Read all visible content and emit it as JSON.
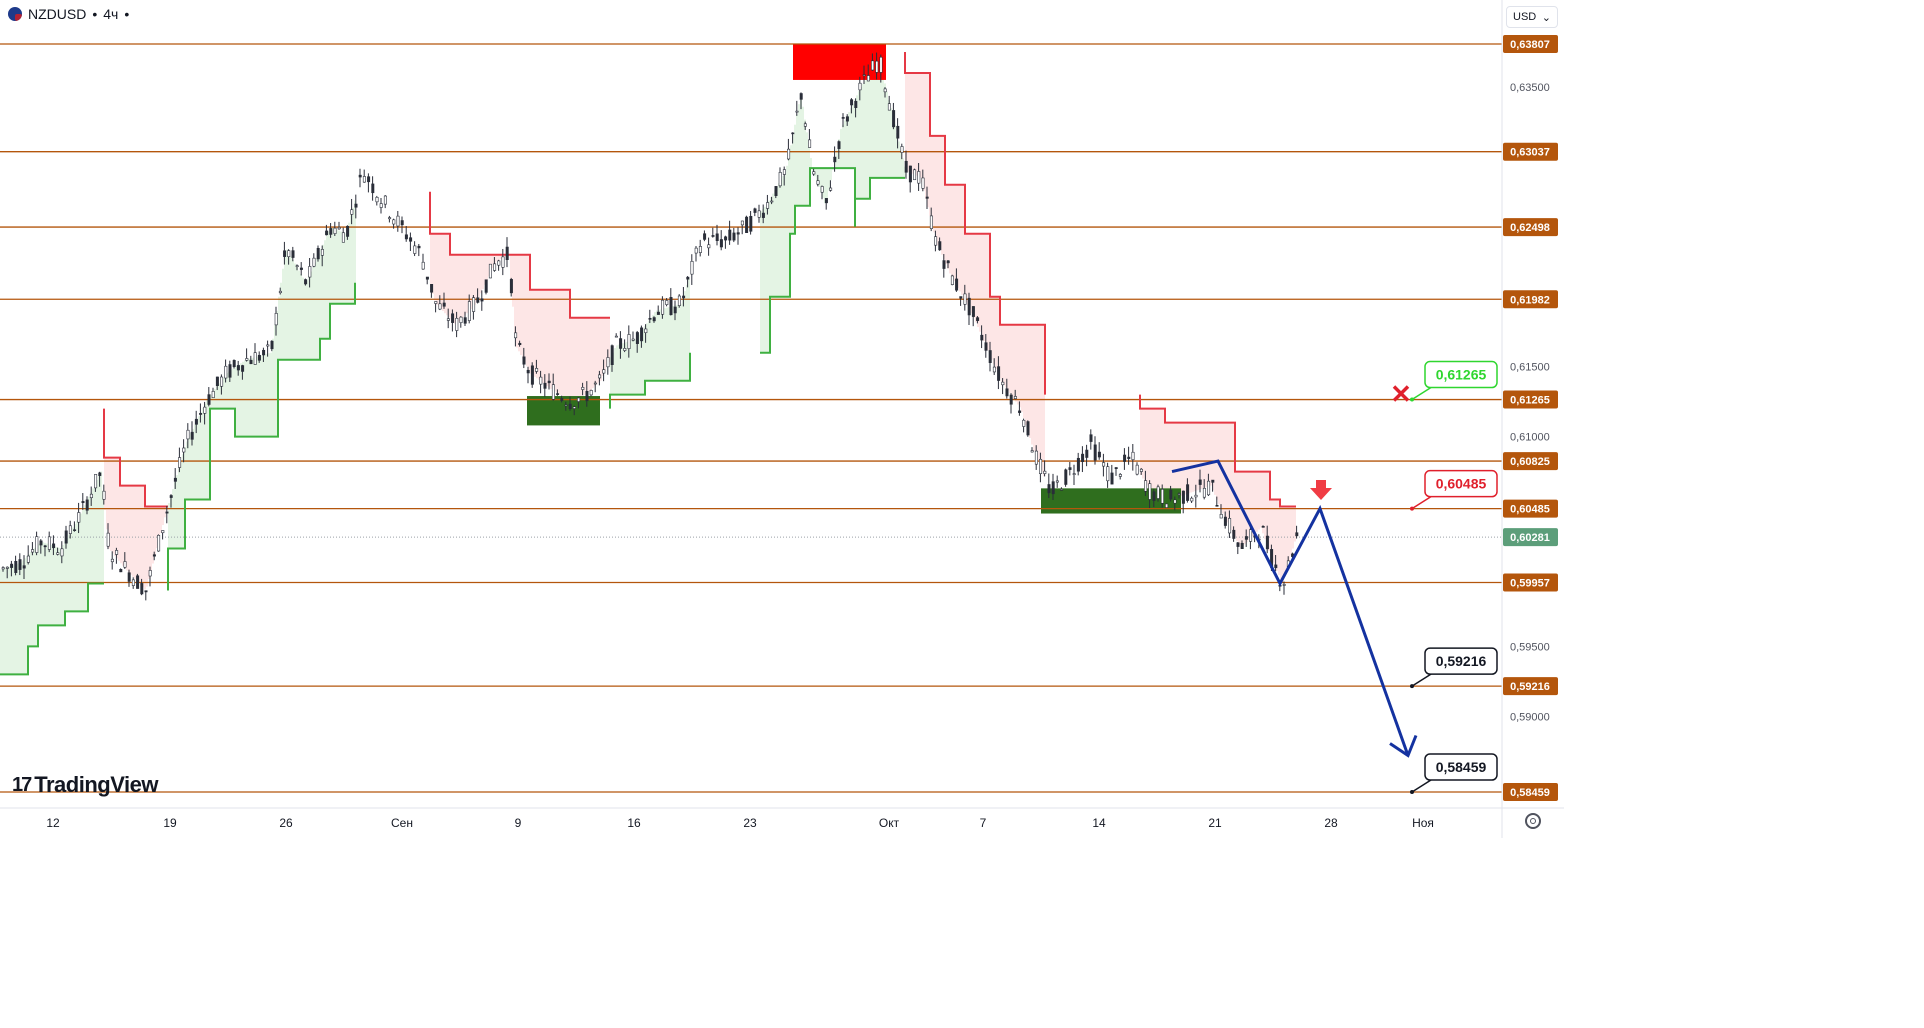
{
  "header": {
    "symbol": "NZDUSD",
    "interval": "4ч",
    "separator": "•",
    "flag_icon": "nz-us-flag-icon"
  },
  "currency_select": {
    "value": "USD",
    "icon": "chevron-down-icon"
  },
  "logo": {
    "mark": "17",
    "text": "TradingView"
  },
  "colors": {
    "level_line": "#b4560c",
    "level_badge": "#b4560c",
    "current_badge": "#5c9e7a",
    "bull_candle": "#2a2e39",
    "stop_up": "#e53945",
    "stop_down": "#3fb041",
    "fill_up": "#fde6e6",
    "fill_down": "#e4f4e4",
    "supply_zone": "#ff0000",
    "demand_zone": "#2f6e1e",
    "forecast": "#1432a0",
    "callout_green": "#2fd62f",
    "callout_red": "#e0202c"
  },
  "chart_data": {
    "type": "candlestick",
    "symbol": "NZDUSD",
    "timeframe": "4ч",
    "y_axis_ticks": [
      0.635,
      0.615,
      0.61,
      0.595,
      0.59
    ],
    "ylim": [
      0.5835,
      0.6405
    ],
    "x_axis_ticks": [
      "12",
      "19",
      "26",
      "Сен",
      "9",
      "16",
      "23",
      "Окт",
      "7",
      "14",
      "21",
      "28",
      "Ноя"
    ],
    "levels": [
      "0,63807",
      "0,63037",
      "0,62498",
      "0,61982",
      "0,61265",
      "0,60825",
      "0,60485",
      "0,59957",
      "0,59216",
      "0,58459"
    ],
    "level_values": [
      0.63807,
      0.63037,
      0.62498,
      0.61982,
      0.61265,
      0.60825,
      0.60485,
      0.59957,
      0.59216,
      0.58459
    ],
    "current_price": {
      "label": "0,60281",
      "value": 0.60281
    },
    "price_path": [
      [
        0,
        0.6005
      ],
      [
        20,
        0.601
      ],
      [
        40,
        0.6025
      ],
      [
        60,
        0.602
      ],
      [
        80,
        0.6045
      ],
      [
        100,
        0.6075
      ],
      [
        108,
        0.602
      ],
      [
        125,
        0.6005
      ],
      [
        145,
        0.599
      ],
      [
        165,
        0.6045
      ],
      [
        185,
        0.6095
      ],
      [
        205,
        0.6125
      ],
      [
        225,
        0.6145
      ],
      [
        245,
        0.6155
      ],
      [
        270,
        0.616
      ],
      [
        285,
        0.6235
      ],
      [
        305,
        0.621
      ],
      [
        330,
        0.625
      ],
      [
        345,
        0.6245
      ],
      [
        362,
        0.629
      ],
      [
        380,
        0.627
      ],
      [
        400,
        0.625
      ],
      [
        420,
        0.623
      ],
      [
        435,
        0.6195
      ],
      [
        455,
        0.618
      ],
      [
        475,
        0.6195
      ],
      [
        495,
        0.6225
      ],
      [
        508,
        0.623
      ],
      [
        515,
        0.6165
      ],
      [
        530,
        0.6145
      ],
      [
        548,
        0.6135
      ],
      [
        570,
        0.6125
      ],
      [
        585,
        0.613
      ],
      [
        600,
        0.614
      ],
      [
        615,
        0.6165
      ],
      [
        635,
        0.617
      ],
      [
        655,
        0.619
      ],
      [
        680,
        0.6195
      ],
      [
        700,
        0.624
      ],
      [
        725,
        0.624
      ],
      [
        745,
        0.625
      ],
      [
        765,
        0.6265
      ],
      [
        785,
        0.629
      ],
      [
        800,
        0.6345
      ],
      [
        812,
        0.629
      ],
      [
        825,
        0.6265
      ],
      [
        840,
        0.632
      ],
      [
        860,
        0.635
      ],
      [
        878,
        0.637
      ],
      [
        890,
        0.6335
      ],
      [
        905,
        0.629
      ],
      [
        920,
        0.6285
      ],
      [
        935,
        0.624
      ],
      [
        950,
        0.6215
      ],
      [
        970,
        0.619
      ],
      [
        985,
        0.6165
      ],
      [
        1000,
        0.614
      ],
      [
        1020,
        0.612
      ],
      [
        1035,
        0.6085
      ],
      [
        1050,
        0.606
      ],
      [
        1070,
        0.6075
      ],
      [
        1090,
        0.6095
      ],
      [
        1110,
        0.607
      ],
      [
        1130,
        0.6085
      ],
      [
        1150,
        0.606
      ],
      [
        1170,
        0.6055
      ],
      [
        1190,
        0.606
      ],
      [
        1210,
        0.6065
      ],
      [
        1225,
        0.604
      ],
      [
        1240,
        0.602
      ],
      [
        1260,
        0.6035
      ],
      [
        1272,
        0.601
      ],
      [
        1282,
        0.5995
      ],
      [
        1296,
        0.603
      ]
    ],
    "stop_up_steps": [
      [
        104,
        0.612
      ],
      [
        104,
        0.6085
      ],
      [
        120,
        0.6085
      ],
      [
        120,
        0.6065
      ],
      [
        145,
        0.6065
      ],
      [
        145,
        0.605
      ],
      [
        168,
        0.605
      ],
      [
        430,
        0.6275
      ],
      [
        430,
        0.6245
      ],
      [
        450,
        0.6245
      ],
      [
        450,
        0.623
      ],
      [
        510,
        0.623
      ],
      [
        530,
        0.623
      ],
      [
        530,
        0.6205
      ],
      [
        570,
        0.6205
      ],
      [
        570,
        0.6185
      ],
      [
        610,
        0.6185
      ],
      [
        905,
        0.6375
      ],
      [
        905,
        0.636
      ],
      [
        930,
        0.633
      ],
      [
        930,
        0.6315
      ],
      [
        945,
        0.63
      ],
      [
        945,
        0.628
      ],
      [
        965,
        0.627
      ],
      [
        965,
        0.6245
      ],
      [
        990,
        0.622
      ],
      [
        990,
        0.62
      ],
      [
        1000,
        0.6195
      ],
      [
        1000,
        0.618
      ],
      [
        1030,
        0.618
      ],
      [
        1045,
        0.614
      ],
      [
        1045,
        0.613
      ],
      [
        1140,
        0.613
      ],
      [
        1140,
        0.612
      ],
      [
        1165,
        0.611
      ],
      [
        1225,
        0.611
      ],
      [
        1235,
        0.6085
      ],
      [
        1235,
        0.6075
      ],
      [
        1270,
        0.6075
      ],
      [
        1270,
        0.6055
      ],
      [
        1280,
        0.6055
      ],
      [
        1280,
        0.605
      ],
      [
        1296,
        0.605
      ]
    ],
    "stop_down_steps": [
      [
        0,
        0.593
      ],
      [
        28,
        0.593
      ],
      [
        28,
        0.595
      ],
      [
        38,
        0.595
      ],
      [
        38,
        0.5965
      ],
      [
        65,
        0.5965
      ],
      [
        65,
        0.5975
      ],
      [
        88,
        0.5975
      ],
      [
        88,
        0.5995
      ],
      [
        104,
        0.5995
      ],
      [
        168,
        0.599
      ],
      [
        168,
        0.602
      ],
      [
        185,
        0.602
      ],
      [
        185,
        0.6055
      ],
      [
        210,
        0.6095
      ],
      [
        210,
        0.612
      ],
      [
        235,
        0.611
      ],
      [
        235,
        0.61
      ],
      [
        278,
        0.61
      ],
      [
        278,
        0.6155
      ],
      [
        300,
        0.6155
      ],
      [
        320,
        0.616
      ],
      [
        320,
        0.617
      ],
      [
        330,
        0.618
      ],
      [
        330,
        0.6195
      ],
      [
        355,
        0.6195
      ],
      [
        355,
        0.621
      ],
      [
        430,
        0.621
      ],
      [
        610,
        0.612
      ],
      [
        610,
        0.613
      ],
      [
        645,
        0.613
      ],
      [
        645,
        0.614
      ],
      [
        690,
        0.614
      ],
      [
        690,
        0.616
      ],
      [
        760,
        0.616
      ],
      [
        770,
        0.6195
      ],
      [
        770,
        0.62
      ],
      [
        785,
        0.62
      ],
      [
        790,
        0.6245
      ],
      [
        795,
        0.6265
      ],
      [
        810,
        0.628
      ],
      [
        810,
        0.6292
      ],
      [
        855,
        0.625
      ],
      [
        855,
        0.627
      ],
      [
        870,
        0.627
      ],
      [
        870,
        0.6285
      ],
      [
        905,
        0.6285
      ]
    ],
    "supply_zone": {
      "x1": 793,
      "x2": 886,
      "top": 0.63807,
      "bottom": 0.6355
    },
    "demand_zones": [
      {
        "x1": 527,
        "x2": 600,
        "top": 0.6129,
        "bottom": 0.6108
      },
      {
        "x1": 1041,
        "x2": 1181,
        "top": 0.6063,
        "bottom": 0.6045
      }
    ],
    "forecast_path": [
      [
        1172,
        0.6075
      ],
      [
        1218,
        0.60825
      ],
      [
        1280,
        0.5995
      ],
      [
        1320,
        0.60485
      ],
      [
        1408,
        0.5872
      ]
    ],
    "annotations": {
      "cancel_mark": {
        "x": 1401,
        "level": "0,61265",
        "icon": "cancel-x-icon"
      },
      "sell_arrow": {
        "x": 1321,
        "icon": "down-arrow-icon"
      },
      "callouts": [
        {
          "label": "0,61265",
          "value": 0.61265,
          "color": "green"
        },
        {
          "label": "0,60485",
          "value": 0.60485,
          "color": "red"
        },
        {
          "label": "0,59216",
          "value": 0.59216,
          "color": "black"
        },
        {
          "label": "0,58459",
          "value": 0.58459,
          "color": "black"
        }
      ]
    }
  }
}
